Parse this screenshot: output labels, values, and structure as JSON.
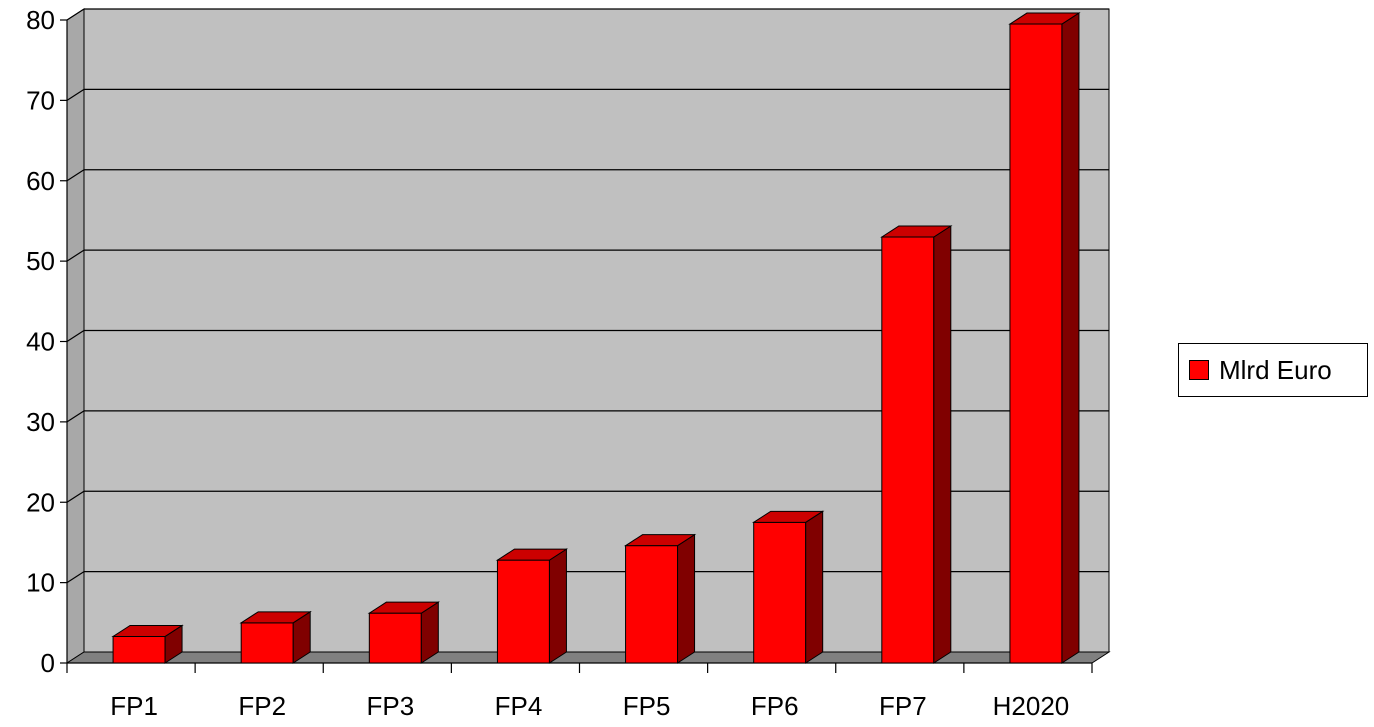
{
  "chart_data": {
    "type": "bar",
    "title": "",
    "xlabel": "",
    "ylabel": "",
    "categories": [
      "FP1",
      "FP2",
      "FP3",
      "FP4",
      "FP5",
      "FP6",
      "FP7",
      "H2020"
    ],
    "series": [
      {
        "name": "Mlrd Euro",
        "values": [
          3.3,
          5.0,
          6.2,
          12.8,
          14.6,
          17.5,
          53.0,
          79.5
        ]
      }
    ],
    "ylim": [
      0,
      80
    ],
    "yticks": [
      0,
      10,
      20,
      30,
      40,
      50,
      60,
      70,
      80
    ],
    "grid": true,
    "legend_position": "right",
    "colors": {
      "bar_front": "#ff0000",
      "bar_top": "#cc0000",
      "bar_side": "#800000",
      "background": "#c0c0c0",
      "floor": "#808080"
    }
  }
}
